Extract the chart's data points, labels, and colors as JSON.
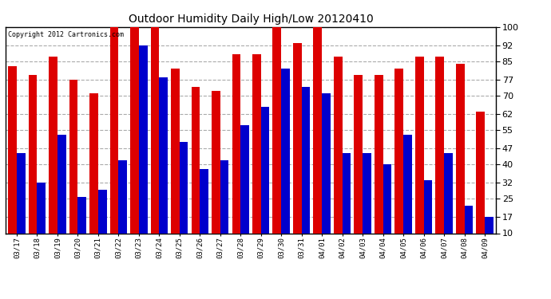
{
  "title": "Outdoor Humidity Daily High/Low 20120410",
  "copyright": "Copyright 2012 Cartronics.com",
  "categories": [
    "03/17",
    "03/18",
    "03/19",
    "03/20",
    "03/21",
    "03/22",
    "03/23",
    "03/24",
    "03/25",
    "03/26",
    "03/27",
    "03/28",
    "03/29",
    "03/30",
    "03/31",
    "04/01",
    "04/02",
    "04/03",
    "04/04",
    "04/05",
    "04/06",
    "04/07",
    "04/08",
    "04/09"
  ],
  "high_values": [
    83,
    79,
    87,
    77,
    71,
    100,
    100,
    100,
    82,
    74,
    72,
    88,
    88,
    100,
    93,
    100,
    87,
    79,
    79,
    82,
    87,
    87,
    84,
    63
  ],
  "low_values": [
    45,
    32,
    53,
    26,
    29,
    42,
    92,
    78,
    50,
    38,
    42,
    57,
    65,
    82,
    74,
    71,
    45,
    45,
    40,
    53,
    33,
    45,
    22,
    17
  ],
  "high_color": "#dd0000",
  "low_color": "#0000cc",
  "bg_color": "#ffffff",
  "plot_bg_color": "#ffffff",
  "grid_color": "#aaaaaa",
  "yticks": [
    10,
    17,
    25,
    32,
    40,
    47,
    55,
    62,
    70,
    77,
    85,
    92,
    100
  ],
  "ylim": [
    10,
    100
  ],
  "bar_width": 0.42,
  "baseline": 10
}
